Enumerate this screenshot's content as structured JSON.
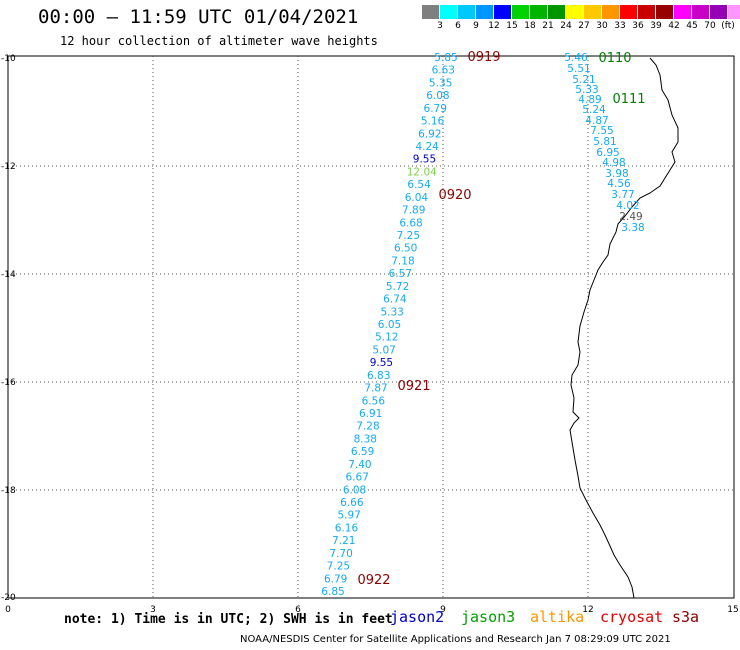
{
  "title": "00:00 – 11:59 UTC 01/04/2021",
  "subtitle": "12 hour collection of altimeter wave heights",
  "colorbar": {
    "colors": [
      "#7f7f7f",
      "#00ffff",
      "#00c8ff",
      "#0096ff",
      "#0000ff",
      "#00d200",
      "#00b400",
      "#009600",
      "#ffff00",
      "#ffc800",
      "#ff9600",
      "#ff0000",
      "#c80000",
      "#960000",
      "#ff00ff",
      "#c800c8",
      "#9600b4",
      "#ff96ff",
      "#000000"
    ],
    "labels": [
      "3",
      "6",
      "9",
      "12",
      "15",
      "18",
      "21",
      "24",
      "27",
      "30",
      "33",
      "36",
      "39",
      "42",
      "45",
      "70",
      "(ft)"
    ]
  },
  "axes": {
    "x_ticks": [
      "0",
      "3",
      "6",
      "9",
      "12",
      "15"
    ],
    "y_ticks": [
      "-10",
      "-12",
      "-14",
      "-16",
      "-18",
      "-20"
    ]
  },
  "tracks": [
    {
      "name": "track-0919-0922",
      "color": "#14aaf0",
      "points": [
        {
          "label": "5.85",
          "color": "#14aaf0"
        },
        {
          "label": "6.63",
          "color": "#14aaf0"
        },
        {
          "label": "5.35",
          "color": "#14aaf0"
        },
        {
          "label": "6.08",
          "color": "#14aaf0"
        },
        {
          "label": "6.79",
          "color": "#14aaf0"
        },
        {
          "label": "5.16",
          "color": "#14aaf0"
        },
        {
          "label": "6.92",
          "color": "#14aaf0"
        },
        {
          "label": "4.24",
          "color": "#14aaf0"
        },
        {
          "label": "9.55",
          "color": "#0000c8"
        },
        {
          "label": "12.04",
          "color": "#7fd050"
        },
        {
          "label": "6.54",
          "color": "#14aaf0"
        },
        {
          "label": "6.04",
          "color": "#14aaf0"
        },
        {
          "label": "7.89",
          "color": "#14aaf0"
        },
        {
          "label": "6.68",
          "color": "#14aaf0"
        },
        {
          "label": "7.25",
          "color": "#14aaf0"
        },
        {
          "label": "6.50",
          "color": "#14aaf0"
        },
        {
          "label": "7.18",
          "color": "#14aaf0"
        },
        {
          "label": "6.57",
          "color": "#14aaf0"
        },
        {
          "label": "5.72",
          "color": "#14aaf0"
        },
        {
          "label": "6.74",
          "color": "#14aaf0"
        },
        {
          "label": "5.33",
          "color": "#14aaf0"
        },
        {
          "label": "6.05",
          "color": "#14aaf0"
        },
        {
          "label": "5.12",
          "color": "#14aaf0"
        },
        {
          "label": "5.07",
          "color": "#14aaf0"
        },
        {
          "label": "9.55",
          "color": "#0000c8"
        },
        {
          "label": "6.83",
          "color": "#14aaf0"
        },
        {
          "label": "7.87",
          "color": "#14aaf0"
        },
        {
          "label": "6.56",
          "color": "#14aaf0"
        },
        {
          "label": "6.91",
          "color": "#14aaf0"
        },
        {
          "label": "7.28",
          "color": "#14aaf0"
        },
        {
          "label": "8.38",
          "color": "#14aaf0"
        },
        {
          "label": "6.59",
          "color": "#14aaf0"
        },
        {
          "label": "7.40",
          "color": "#14aaf0"
        },
        {
          "label": "6.67",
          "color": "#14aaf0"
        },
        {
          "label": "6.08",
          "color": "#14aaf0"
        },
        {
          "label": "6.66",
          "color": "#14aaf0"
        },
        {
          "label": "5.97",
          "color": "#14aaf0"
        },
        {
          "label": "6.16",
          "color": "#14aaf0"
        },
        {
          "label": "7.21",
          "color": "#14aaf0"
        },
        {
          "label": "7.70",
          "color": "#14aaf0"
        },
        {
          "label": "7.25",
          "color": "#14aaf0"
        },
        {
          "label": "6.79",
          "color": "#14aaf0"
        },
        {
          "label": "6.85",
          "color": "#14aaf0"
        }
      ],
      "times": [
        {
          "label": "0919",
          "color": "#8b0000"
        },
        {
          "label": "0920",
          "color": "#8b0000"
        },
        {
          "label": "0921",
          "color": "#8b0000"
        },
        {
          "label": "0922",
          "color": "#8b0000"
        }
      ]
    },
    {
      "name": "track-0110-0111",
      "color": "#14aaf0",
      "points": [
        {
          "label": "5.46",
          "color": "#14aaf0"
        },
        {
          "label": "5.51",
          "color": "#14aaf0"
        },
        {
          "label": "5.21",
          "color": "#14aaf0"
        },
        {
          "label": "5.33",
          "color": "#14aaf0"
        },
        {
          "label": "4.89",
          "color": "#14aaf0"
        },
        {
          "label": "5.24",
          "color": "#14aaf0"
        },
        {
          "label": "4.87",
          "color": "#14aaf0"
        },
        {
          "label": "7.55",
          "color": "#14aaf0"
        },
        {
          "label": "5.81",
          "color": "#14aaf0"
        },
        {
          "label": "6.95",
          "color": "#14aaf0"
        },
        {
          "label": "4.98",
          "color": "#14aaf0"
        },
        {
          "label": "3.98",
          "color": "#14aaf0"
        },
        {
          "label": "4.56",
          "color": "#14aaf0"
        },
        {
          "label": "3.77",
          "color": "#14aaf0"
        },
        {
          "label": "4.02",
          "color": "#14aaf0"
        },
        {
          "label": "2.49",
          "color": "#555555"
        },
        {
          "label": "3.38",
          "color": "#14aaf0"
        }
      ],
      "times": [
        {
          "label": "0110",
          "color": "#008000"
        },
        {
          "label": "0111",
          "color": "#008000"
        }
      ]
    }
  ],
  "note": "note: 1) Time is in UTC; 2) SWH is in feet",
  "legend": [
    {
      "label": "jason2",
      "color": "#0000c8"
    },
    {
      "label": "jason3",
      "color": "#00a000"
    },
    {
      "label": "altika",
      "color": "#ff9600"
    },
    {
      "label": "cryosat",
      "color": "#e00000"
    },
    {
      "label": "s3a",
      "color": "#8b0000"
    }
  ],
  "footer": "NOAA/NESDIS Center for Satellite Applications and Research   Jan  7 08:29:09 UTC 2021"
}
